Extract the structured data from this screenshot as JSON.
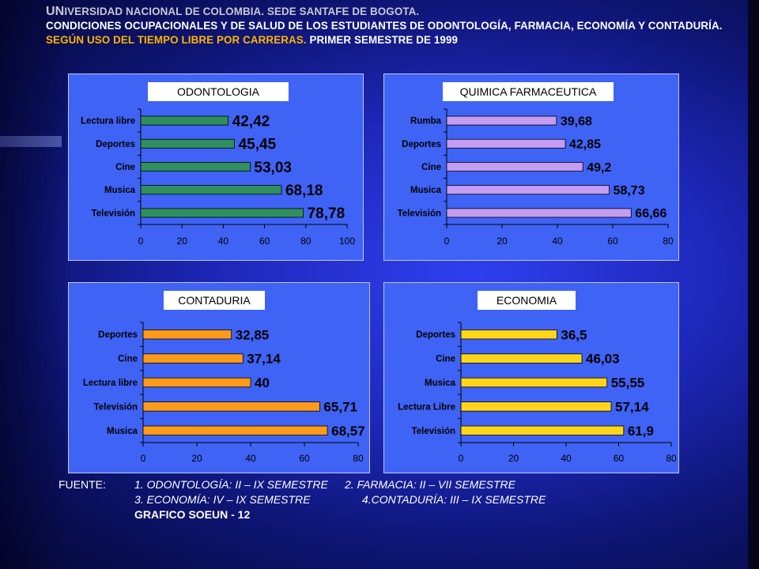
{
  "header": {
    "line1": "UNIVERSIDAD NACIONAL DE COLOMBIA. SEDE SANTAFE DE BOGOTA.",
    "line2": "CONDICIONES OCUPACIONALES Y DE SALUD DE LOS ESTUDIANTES DE ODONTOLOGÍA, FARMACIA, ECONOMÍA Y CONTADURÍA.",
    "line3_orange": "SEGÚN USO DEL TIEMPO LIBRE POR CARRERAS.",
    "line3_white": "PRIMER SEMESTRE DE 1999"
  },
  "chart_data": [
    {
      "type": "bar",
      "title": "ODONTOLOGIA",
      "categories": [
        "Lectura libre",
        "Deportes",
        "Cine",
        "Musica",
        "Televisión"
      ],
      "values": [
        42.42,
        45.45,
        53.03,
        68.18,
        78.78
      ],
      "value_labels": [
        "42,42",
        "45,45",
        "53,03",
        "68,18",
        "78,78"
      ],
      "xlim": [
        0,
        100
      ],
      "ticks": [
        0,
        20,
        40,
        60,
        80,
        100
      ],
      "bar_color": "#2f8f5e",
      "orientation": "horizontal"
    },
    {
      "type": "bar",
      "title": "QUIMICA FARMACEUTICA",
      "categories": [
        "Rumba",
        "Deportes",
        "Cine",
        "Musica",
        "Televisión"
      ],
      "values": [
        39.68,
        42.85,
        49.2,
        58.73,
        66.66
      ],
      "value_labels": [
        "39,68",
        "42,85",
        "49,2",
        "58,73",
        "66,66"
      ],
      "xlim": [
        0,
        80
      ],
      "ticks": [
        0,
        20,
        40,
        60,
        80
      ],
      "bar_color": "#c49cf2",
      "orientation": "horizontal"
    },
    {
      "type": "bar",
      "title": "CONTADURIA",
      "categories": [
        "Deportes",
        "Cine",
        "Lectura libre",
        "Televisión",
        "Musica"
      ],
      "values": [
        32.85,
        37.14,
        40,
        65.71,
        68.57
      ],
      "value_labels": [
        "32,85",
        "37,14",
        "40",
        "65,71",
        "68,57"
      ],
      "xlim": [
        0,
        80
      ],
      "ticks": [
        0,
        20,
        40,
        60,
        80
      ],
      "bar_color": "#ff9a1a",
      "orientation": "horizontal"
    },
    {
      "type": "bar",
      "title": "ECONOMIA",
      "categories": [
        "Deportes",
        "Cine",
        "Musica",
        "Lectura Libre",
        "Televisión"
      ],
      "values": [
        36.5,
        46.03,
        55.55,
        57.14,
        61.9
      ],
      "value_labels": [
        "36,5",
        "46,03",
        "55,55",
        "57,14",
        "61,9"
      ],
      "xlim": [
        0,
        80
      ],
      "ticks": [
        0,
        20,
        40,
        60,
        80
      ],
      "bar_color": "#ffd51a",
      "orientation": "horizontal"
    }
  ],
  "footer": {
    "label": "FUENTE:",
    "item1": "1. ODONTOLOGÍA: II – IX SEMESTRE",
    "item2": "2. FARMACIA: II – VII SEMESTRE",
    "item3": "3. ECONOMÍA: IV – IX SEMESTRE",
    "item4": "4.CONTADURÍA: III – IX SEMESTRE",
    "graph_id": "GRAFICO SOEUN - 12"
  }
}
